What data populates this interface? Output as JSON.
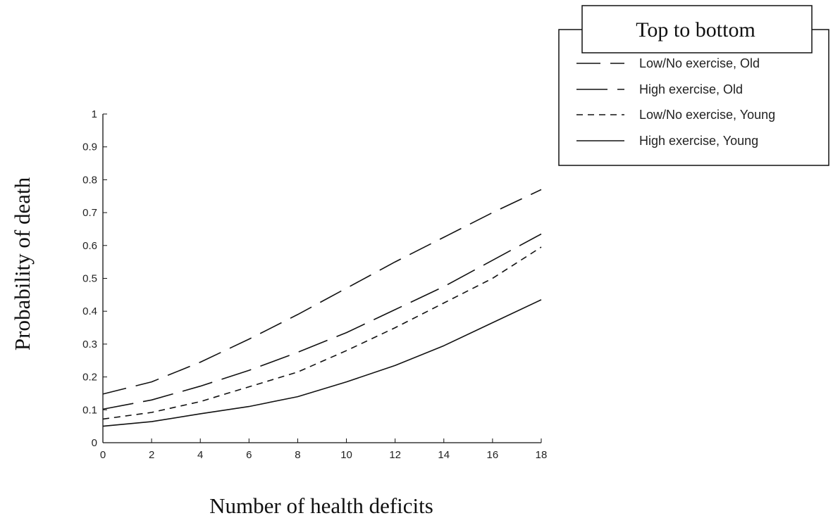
{
  "chart_data": {
    "type": "line",
    "xlabel": "Number of health deficits",
    "ylabel": "Probability of death",
    "xlim": [
      0,
      18
    ],
    "ylim": [
      0,
      1
    ],
    "xticks": [
      "0",
      "2",
      "4",
      "6",
      "8",
      "10",
      "12",
      "14",
      "16",
      "18"
    ],
    "yticks": [
      "0",
      "0.1",
      "0.2",
      "0.3",
      "0.4",
      "0.5",
      "0.6",
      "0.7",
      "0.8",
      "0.9",
      "1"
    ],
    "x": [
      0,
      2,
      4,
      6,
      8,
      10,
      12,
      14,
      16,
      18
    ],
    "series": [
      {
        "name": "Low/No exercise, Old",
        "style": "long-dash",
        "values": [
          0.148,
          0.185,
          0.245,
          0.315,
          0.39,
          0.47,
          0.55,
          0.625,
          0.7,
          0.77
        ]
      },
      {
        "name": "High exercise, Old",
        "style": "dash",
        "values": [
          0.102,
          0.13,
          0.172,
          0.22,
          0.275,
          0.335,
          0.405,
          0.475,
          0.555,
          0.635
        ]
      },
      {
        "name": "Low/No exercise, Young",
        "style": "short-dash",
        "values": [
          0.072,
          0.092,
          0.125,
          0.17,
          0.215,
          0.28,
          0.35,
          0.425,
          0.5,
          0.595
        ]
      },
      {
        "name": "High exercise, Young",
        "style": "solid",
        "values": [
          0.05,
          0.064,
          0.088,
          0.11,
          0.14,
          0.185,
          0.235,
          0.295,
          0.365,
          0.435
        ]
      }
    ],
    "legend": {
      "title": "Top to bottom",
      "position": "top-right"
    },
    "grid": false
  }
}
